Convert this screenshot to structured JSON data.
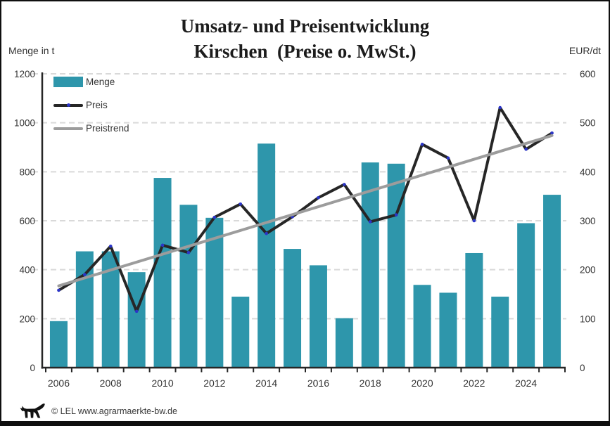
{
  "title": {
    "line1": "Umsatz- und Preisentwicklung",
    "line2": "Kirschen  (Preise o. MwSt.)"
  },
  "axes": {
    "left_unit": "Menge in t",
    "right_unit": "EUR/dt",
    "left_ticks": [
      "0",
      "200",
      "400",
      "600",
      "800",
      "1000",
      "1200"
    ],
    "right_ticks": [
      "0",
      "100",
      "200",
      "300",
      "400",
      "500",
      "600"
    ],
    "x_tick_labels": [
      "2006",
      "2008",
      "2010",
      "2012",
      "2014",
      "2016",
      "2018",
      "2020",
      "2022",
      "2024"
    ]
  },
  "legend": [
    {
      "label": "Menge",
      "swatch": "bar"
    },
    {
      "label": "Preis",
      "swatch": "line-dark-with-marker"
    },
    {
      "label": "Preistrend",
      "swatch": "line-gray"
    }
  ],
  "footer": {
    "copyright": "© LEL www.agrarmaerkte-bw.de",
    "logo": "bw-lion-logo"
  },
  "colors": {
    "bar": "#2E96AB",
    "price_line": "#262626",
    "marker": "#2B35C8",
    "trend_line": "#9C9C9C",
    "grid": "#D9D9D9",
    "axis": "#262626",
    "text": "#333333",
    "frame": "#0F0F0F"
  },
  "chart_data": {
    "type": "bar+line combo",
    "title": "Umsatz- und Preisentwicklung Kirschen (Preise o. MwSt.)",
    "x": [
      2006,
      2007,
      2008,
      2009,
      2010,
      2011,
      2012,
      2013,
      2014,
      2015,
      2016,
      2017,
      2018,
      2019,
      2020,
      2021,
      2022,
      2023,
      2024,
      2025
    ],
    "series": [
      {
        "name": "Menge",
        "type": "bar",
        "axis": "left",
        "unit": "t",
        "values": [
          190,
          475,
          475,
          390,
          775,
          665,
          612,
          290,
          915,
          485,
          418,
          202,
          838,
          833,
          338,
          306,
          468,
          290,
          590,
          706
        ]
      },
      {
        "name": "Preis",
        "type": "line",
        "axis": "right",
        "unit": "EUR/dt",
        "values": [
          158,
          190,
          248,
          115,
          250,
          235,
          307,
          334,
          274,
          308,
          347,
          374,
          298,
          312,
          456,
          428,
          300,
          531,
          446,
          479
        ]
      },
      {
        "name": "Preistrend",
        "type": "line",
        "axis": "right",
        "unit": "EUR/dt",
        "values": [
          167,
          183,
          199,
          216,
          232,
          248,
          264,
          280,
          296,
          312,
          329,
          345,
          361,
          377,
          393,
          409,
          426,
          442,
          458,
          474
        ]
      }
    ],
    "left_axis": {
      "label": "Menge in t",
      "range": [
        0,
        1200
      ],
      "step": 200
    },
    "right_axis": {
      "label": "EUR/dt",
      "range": [
        0,
        600
      ],
      "step": 100
    },
    "x_axis": {
      "labeled_ticks": [
        2006,
        2008,
        2010,
        2012,
        2014,
        2016,
        2018,
        2020,
        2022,
        2024
      ],
      "tick_every_year": true
    },
    "grid": "horizontal dashed",
    "legend_position": "top-left inside plot"
  }
}
